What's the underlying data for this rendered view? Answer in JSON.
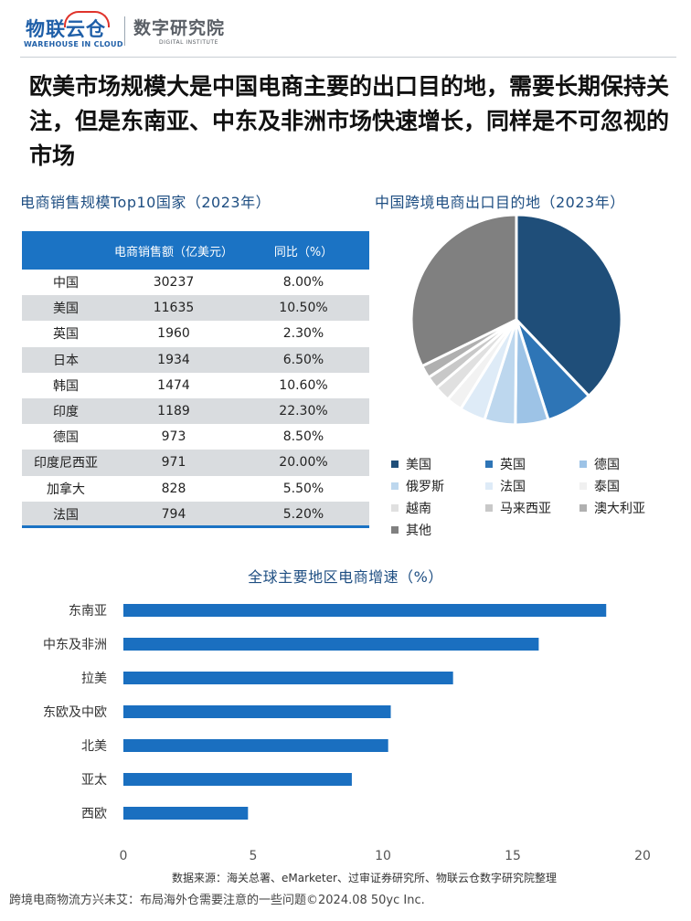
{
  "header": {
    "logo_left_main": "物联云仓",
    "logo_left_sub": "WAREHOUSE IN CLOUD",
    "logo_right_main": "数字研究院",
    "logo_right_sub": "DIGITAL INSTITUTE"
  },
  "headline": "欧美市场规模大是中国电商主要的出口目的地，需要长期保持关注，但是东南亚、中东及非洲市场快速增长，同样是不可忽视的市场",
  "colors": {
    "brand_blue": "#1b73c4",
    "title_blue": "#1e4e82",
    "bar_blue": "#1a6fc0",
    "table_stripe": "#d9dcdf"
  },
  "chart_data": [
    {
      "type": "table",
      "title": "电商销售规模Top10国家（2023年）",
      "columns": [
        "",
        "电商销售额（亿美元）",
        "同比（%）"
      ],
      "rows": [
        [
          "中国",
          "30237",
          "8.00%"
        ],
        [
          "美国",
          "11635",
          "10.50%"
        ],
        [
          "英国",
          "1960",
          "2.30%"
        ],
        [
          "日本",
          "1934",
          "6.50%"
        ],
        [
          "韩国",
          "1474",
          "10.60%"
        ],
        [
          "印度",
          "1189",
          "22.30%"
        ],
        [
          "德国",
          "973",
          "8.50%"
        ],
        [
          "印度尼西亚",
          "971",
          "20.00%"
        ],
        [
          "加拿大",
          "828",
          "5.50%"
        ],
        [
          "法国",
          "794",
          "5.20%"
        ]
      ]
    },
    {
      "type": "pie",
      "title": "中国跨境电商出口目的地（2023年）",
      "legend_position": "bottom",
      "slices": [
        {
          "label": "美国",
          "value": 34.3,
          "color": "#1f4e79"
        },
        {
          "label": "英国",
          "value": 6.5,
          "color": "#2e75b6"
        },
        {
          "label": "德国",
          "value": 4.6,
          "color": "#9dc3e6"
        },
        {
          "label": "俄罗斯",
          "value": 4.3,
          "color": "#bdd7ee"
        },
        {
          "label": "法国",
          "value": 3.6,
          "color": "#deebf7"
        },
        {
          "label": "泰国",
          "value": 2.2,
          "color": "#f2f2f2"
        },
        {
          "label": "越南",
          "value": 2.2,
          "color": "#e0e0e0"
        },
        {
          "label": "马来西亚",
          "value": 1.8,
          "color": "#c8c8c8"
        },
        {
          "label": "澳大利亚",
          "value": 1.8,
          "color": "#b0b0b0"
        },
        {
          "label": "其他",
          "value": 29.2,
          "color": "#808080"
        }
      ]
    },
    {
      "type": "bar",
      "orientation": "horizontal",
      "title": "全球主要地区电商增速（%）",
      "categories": [
        "东南亚",
        "中东及非洲",
        "拉美",
        "东欧及中欧",
        "北美",
        "亚太",
        "西欧"
      ],
      "values": [
        18.6,
        16.0,
        12.7,
        10.3,
        10.2,
        8.8,
        4.8
      ],
      "xlim": [
        0,
        20
      ],
      "xticks": [
        "0",
        "5",
        "10",
        "15",
        "20"
      ],
      "grid": false
    }
  ],
  "source_note": "数据来源：海关总署、eMarketer、过审证券研究所、物联云仓数字研究院整理",
  "footer_note": "跨境电商物流方兴未艾：布局海外仓需要注意的一些问题©2024.08 50yc Inc."
}
